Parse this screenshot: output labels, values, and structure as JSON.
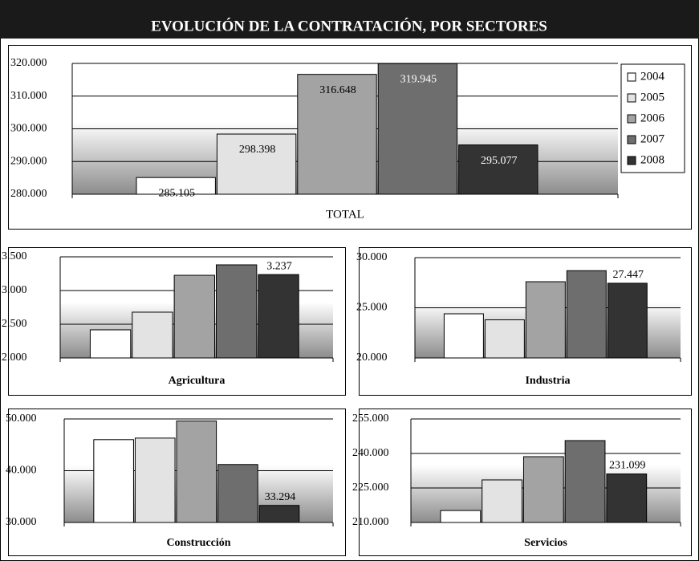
{
  "title": "EVOLUCIÓN DE LA CONTRATACIÓN, POR SECTORES",
  "chart_data": [
    {
      "type": "bar",
      "categories": [
        "TOTAL"
      ],
      "legend": true,
      "legend_position": "right",
      "ylim": [
        280000,
        320000
      ],
      "yticks": [
        {
          "value": 280000,
          "label": "280.000"
        },
        {
          "value": 290000,
          "label": "290.000"
        },
        {
          "value": 300000,
          "label": "300.000"
        },
        {
          "value": 310000,
          "label": "310.000"
        },
        {
          "value": 320000,
          "label": "320.000"
        }
      ],
      "series": [
        {
          "name": "2004",
          "color": "#ffffff",
          "values": [
            285105
          ],
          "value_labels": [
            "285.105"
          ]
        },
        {
          "name": "2005",
          "color": "#e3e3e3",
          "values": [
            298398
          ],
          "value_labels": [
            "298.398"
          ]
        },
        {
          "name": "2006",
          "color": "#a3a3a3",
          "values": [
            316648
          ],
          "value_labels": [
            "316.648"
          ]
        },
        {
          "name": "2007",
          "color": "#6e6e6e",
          "values": [
            319945
          ],
          "value_labels": [
            "319.945"
          ]
        },
        {
          "name": "2008",
          "color": "#333333",
          "values": [
            295077
          ],
          "value_labels": [
            "295.077"
          ]
        }
      ]
    },
    {
      "type": "bar",
      "categories": [
        "Agricultura"
      ],
      "ylim": [
        2000,
        3500
      ],
      "yticks": [
        {
          "value": 2000,
          "label": "2.000"
        },
        {
          "value": 2500,
          "label": "2.500"
        },
        {
          "value": 3000,
          "label": "3.000"
        },
        {
          "value": 3500,
          "label": "3.500"
        }
      ],
      "series": [
        {
          "color": "#ffffff",
          "values": [
            2417
          ]
        },
        {
          "color": "#e3e3e3",
          "values": [
            2679
          ]
        },
        {
          "color": "#a3a3a3",
          "values": [
            3226
          ]
        },
        {
          "color": "#6e6e6e",
          "values": [
            3381
          ]
        },
        {
          "color": "#333333",
          "values": [
            3237
          ],
          "value_labels": [
            "3.237"
          ]
        }
      ]
    },
    {
      "type": "bar",
      "categories": [
        "Industria"
      ],
      "ylim": [
        20000,
        30000
      ],
      "yticks": [
        {
          "value": 20000,
          "label": "20.000"
        },
        {
          "value": 25000,
          "label": "25.000"
        },
        {
          "value": 30000,
          "label": "30.000"
        }
      ],
      "series": [
        {
          "color": "#ffffff",
          "values": [
            24400
          ]
        },
        {
          "color": "#e3e3e3",
          "values": [
            23800
          ]
        },
        {
          "color": "#a3a3a3",
          "values": [
            27600
          ]
        },
        {
          "color": "#6e6e6e",
          "values": [
            28700
          ]
        },
        {
          "color": "#333333",
          "values": [
            27447
          ],
          "value_labels": [
            "27.447"
          ]
        }
      ]
    },
    {
      "type": "bar",
      "categories": [
        "Construcción"
      ],
      "ylim": [
        30000,
        50000
      ],
      "yticks": [
        {
          "value": 30000,
          "label": "30.000"
        },
        {
          "value": 40000,
          "label": "40.000"
        },
        {
          "value": 50000,
          "label": "50.000"
        }
      ],
      "series": [
        {
          "color": "#ffffff",
          "values": [
            46000
          ]
        },
        {
          "color": "#e3e3e3",
          "values": [
            46300
          ]
        },
        {
          "color": "#a3a3a3",
          "values": [
            49600
          ]
        },
        {
          "color": "#6e6e6e",
          "values": [
            41200
          ]
        },
        {
          "color": "#333333",
          "values": [
            33294
          ],
          "value_labels": [
            "33.294"
          ]
        }
      ]
    },
    {
      "type": "bar",
      "categories": [
        "Servicios"
      ],
      "ylim": [
        210000,
        255000
      ],
      "yticks": [
        {
          "value": 210000,
          "label": "210.000"
        },
        {
          "value": 225000,
          "label": "225.000"
        },
        {
          "value": 240000,
          "label": "240.000"
        },
        {
          "value": 255000,
          "label": "255.000"
        }
      ],
      "series": [
        {
          "color": "#ffffff",
          "values": [
            215200
          ]
        },
        {
          "color": "#e3e3e3",
          "values": [
            228500
          ]
        },
        {
          "color": "#a3a3a3",
          "values": [
            238600
          ]
        },
        {
          "color": "#6e6e6e",
          "values": [
            245600
          ]
        },
        {
          "color": "#333333",
          "values": [
            231099
          ],
          "value_labels": [
            "231.099"
          ]
        }
      ]
    }
  ]
}
